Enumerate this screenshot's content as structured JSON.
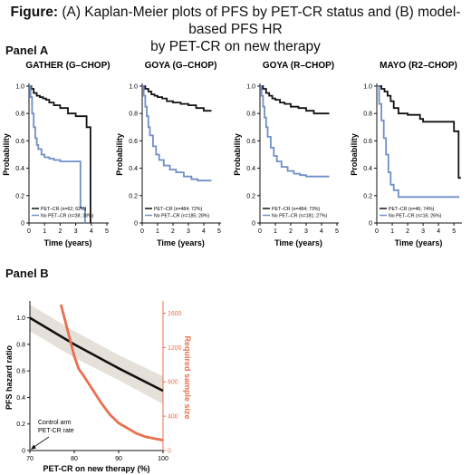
{
  "figure": {
    "title_prefix": "Figure:",
    "title_line1": " (A) Kaplan-Meier plots of PFS by PET-CR status and (B) model-based PFS HR",
    "title_line2": "by PET-CR on new therapy",
    "panel_a_label": "Panel A",
    "panel_b_label": "Panel B"
  },
  "colors": {
    "pet_cr": "#111111",
    "no_pet_cr": "#6f8fc7",
    "hr_band": "#e6e0da",
    "hr_line": "#111111",
    "sample_size": "#e8704f"
  },
  "chart_data": [
    {
      "type": "line",
      "title": "GATHER (G–CHOP)",
      "xlabel": "Time (years)",
      "ylabel": "Probability",
      "xlim": [
        0,
        5
      ],
      "ylim": [
        0,
        1.0
      ],
      "xticks": [
        "0",
        "1",
        "2",
        "3",
        "4",
        "5"
      ],
      "yticks": [
        "0",
        "0.2",
        "0.4",
        "0.6",
        "0.8",
        "1.0"
      ],
      "legend_position": "bottom-left",
      "series": [
        {
          "name": "PET–CR (n=62; 62%)",
          "color": "#111111",
          "x": [
            0,
            0.15,
            0.3,
            0.5,
            0.7,
            0.9,
            1.1,
            1.3,
            1.6,
            2.0,
            2.5,
            3.0,
            3.7,
            3.95,
            3.95
          ],
          "y": [
            1.0,
            0.98,
            0.95,
            0.93,
            0.92,
            0.91,
            0.9,
            0.88,
            0.86,
            0.84,
            0.8,
            0.78,
            0.7,
            0.7,
            0.0
          ]
        },
        {
          "name": "No PET–CR (n=38; 38%)",
          "color": "#6f8fc7",
          "x": [
            0,
            0.1,
            0.2,
            0.3,
            0.4,
            0.5,
            0.6,
            0.8,
            1.0,
            1.3,
            1.6,
            2.0,
            2.5,
            3.0,
            3.3,
            3.3,
            3.6,
            3.6
          ],
          "y": [
            1.0,
            0.92,
            0.8,
            0.7,
            0.62,
            0.57,
            0.54,
            0.5,
            0.48,
            0.47,
            0.46,
            0.45,
            0.45,
            0.45,
            0.45,
            0.11,
            0.11,
            0.0
          ]
        }
      ]
    },
    {
      "type": "line",
      "title": "GOYA (G–CHOP)",
      "xlabel": "Time (years)",
      "ylabel": "Probability",
      "xlim": [
        0,
        5
      ],
      "ylim": [
        0,
        1.0
      ],
      "xticks": [
        "0",
        "1",
        "2",
        "3",
        "4",
        "5"
      ],
      "yticks": [
        "0",
        "0.2",
        "0.4",
        "0.6",
        "0.8",
        "1.0"
      ],
      "legend_position": "bottom-left",
      "series": [
        {
          "name": "PET–CR (n=484; 72%)",
          "color": "#111111",
          "x": [
            0,
            0.2,
            0.4,
            0.6,
            0.8,
            1.0,
            1.3,
            1.6,
            2.0,
            2.5,
            3.0,
            3.5,
            4.0,
            4.5
          ],
          "y": [
            1.0,
            0.98,
            0.96,
            0.94,
            0.93,
            0.92,
            0.91,
            0.89,
            0.88,
            0.87,
            0.86,
            0.84,
            0.82,
            0.82
          ]
        },
        {
          "name": "No PET–CR (n=185; 28%)",
          "color": "#6f8fc7",
          "x": [
            0,
            0.1,
            0.2,
            0.3,
            0.4,
            0.5,
            0.7,
            0.9,
            1.1,
            1.4,
            1.8,
            2.2,
            2.7,
            3.2,
            3.6,
            4.0,
            4.5
          ],
          "y": [
            1.0,
            0.93,
            0.85,
            0.78,
            0.7,
            0.64,
            0.56,
            0.5,
            0.46,
            0.42,
            0.39,
            0.37,
            0.34,
            0.32,
            0.31,
            0.31,
            0.31
          ]
        }
      ]
    },
    {
      "type": "line",
      "title": "GOYA (R–CHOP)",
      "xlabel": "Time (years)",
      "ylabel": "Probability",
      "xlim": [
        0,
        5
      ],
      "ylim": [
        0,
        1.0
      ],
      "xticks": [
        "0",
        "1",
        "2",
        "3",
        "4",
        "5"
      ],
      "yticks": [
        "0",
        "0.2",
        "0.4",
        "0.6",
        "0.8",
        "1.0"
      ],
      "legend_position": "bottom-left",
      "series": [
        {
          "name": "PET–CR (n=484; 73%)",
          "color": "#111111",
          "x": [
            0,
            0.2,
            0.4,
            0.6,
            0.8,
            1.0,
            1.3,
            1.6,
            2.0,
            2.5,
            3.0,
            3.5,
            4.0,
            4.5
          ],
          "y": [
            1.0,
            0.98,
            0.95,
            0.93,
            0.91,
            0.9,
            0.88,
            0.87,
            0.85,
            0.84,
            0.82,
            0.8,
            0.8,
            0.8
          ]
        },
        {
          "name": "No PET–CR (n=181; 27%)",
          "color": "#6f8fc7",
          "x": [
            0,
            0.1,
            0.2,
            0.3,
            0.4,
            0.5,
            0.7,
            0.9,
            1.1,
            1.4,
            1.8,
            2.2,
            2.6,
            3.0,
            3.5,
            4.0,
            4.5
          ],
          "y": [
            1.0,
            0.93,
            0.85,
            0.77,
            0.7,
            0.63,
            0.55,
            0.49,
            0.45,
            0.41,
            0.38,
            0.36,
            0.35,
            0.34,
            0.34,
            0.34,
            0.34
          ]
        }
      ]
    },
    {
      "type": "line",
      "title": "MAYO (R2–CHOP)",
      "xlabel": "Time (years)",
      "ylabel": "Probability",
      "xlim": [
        0,
        5.4
      ],
      "ylim": [
        0,
        1.0
      ],
      "xticks": [
        "0",
        "1",
        "2",
        "3",
        "4",
        "5"
      ],
      "yticks": [
        "0",
        "0.2",
        "0.4",
        "0.6",
        "0.8",
        "1.0"
      ],
      "legend_position": "bottom-left",
      "series": [
        {
          "name": "PET–CR (n=46; 74%)",
          "color": "#111111",
          "x": [
            0,
            0.3,
            0.5,
            0.7,
            0.9,
            1.1,
            1.4,
            2.0,
            2.8,
            3.0,
            4.0,
            5.0,
            5.0,
            5.3,
            5.3,
            5.45
          ],
          "y": [
            1.0,
            0.98,
            0.96,
            0.93,
            0.89,
            0.84,
            0.8,
            0.79,
            0.76,
            0.74,
            0.74,
            0.73,
            0.67,
            0.67,
            0.33,
            0.33
          ]
        },
        {
          "name": "No PET–CR (n=16; 26%)",
          "color": "#6f8fc7",
          "x": [
            0,
            0.15,
            0.3,
            0.45,
            0.6,
            0.75,
            0.9,
            1.1,
            1.4,
            2.0,
            3.0,
            4.0,
            5.0,
            5.35
          ],
          "y": [
            1.0,
            0.87,
            0.75,
            0.62,
            0.5,
            0.37,
            0.28,
            0.24,
            0.19,
            0.19,
            0.19,
            0.19,
            0.19,
            0.19
          ]
        }
      ]
    },
    {
      "type": "line",
      "xlabel": "PET-CR on new therapy (%)",
      "ylabel": "PFS hazard ratio",
      "ylabel_right": "Required sample size",
      "xlim": [
        70,
        100
      ],
      "ylim": [
        0,
        1.1
      ],
      "ylim_right": [
        0,
        1700
      ],
      "xticks": [
        "70",
        "80",
        "90",
        "100"
      ],
      "yticks": [
        "0",
        "0.2",
        "0.4",
        "0.6",
        "0.8",
        "1.0"
      ],
      "yticks_right": [
        "0",
        "400",
        "800",
        "1200",
        "1600"
      ],
      "annotation": [
        "Control arm",
        "PET-CR rate"
      ],
      "series": [
        {
          "axis": "left",
          "color": "#111111",
          "x": [
            70,
            80,
            90,
            100
          ],
          "y": [
            1.0,
            0.8,
            0.62,
            0.45
          ],
          "band_upper": [
            1.1,
            0.9,
            0.72,
            0.56
          ],
          "band_lower": [
            0.9,
            0.7,
            0.53,
            0.35
          ]
        },
        {
          "axis": "right",
          "color": "#e8704f",
          "x": [
            77,
            78,
            79,
            80,
            81,
            82,
            84,
            86,
            88,
            90,
            92,
            94,
            96,
            98,
            100
          ],
          "y": [
            1700,
            1500,
            1300,
            1100,
            950,
            880,
            720,
            560,
            420,
            320,
            260,
            200,
            160,
            140,
            120
          ]
        }
      ]
    }
  ]
}
